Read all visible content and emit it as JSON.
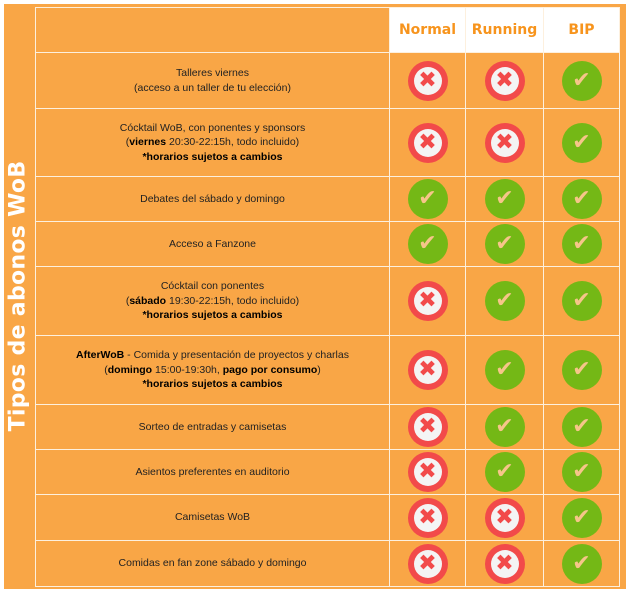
{
  "side_title": "Tipos de abonos WoB",
  "columns": [
    "Normal",
    "Running",
    "BIP"
  ],
  "colors": {
    "background": "#F9A646",
    "header_text": "#F7941D",
    "yes": "#74B816",
    "no": "#F24A4A"
  },
  "icons": {
    "yes": "check-circle-icon",
    "no": "x-circle-icon"
  },
  "rows": [
    {
      "lines": [
        [
          {
            "t": "Talleres viernes",
            "b": false
          }
        ],
        [
          {
            "t": "(acceso a un taller de tu elección)",
            "b": false
          }
        ]
      ],
      "values": [
        "no",
        "no",
        "yes"
      ]
    },
    {
      "lines": [
        [
          {
            "t": "Cócktail WoB, con ponentes y sponsors",
            "b": false
          }
        ],
        [
          {
            "t": "(",
            "b": false
          },
          {
            "t": "viernes",
            "b": true
          },
          {
            "t": " 20:30-22:15h, todo incluido)",
            "b": false
          }
        ],
        [
          {
            "t": "*horarios sujetos a cambios",
            "b": true
          }
        ]
      ],
      "values": [
        "no",
        "no",
        "yes"
      ]
    },
    {
      "lines": [
        [
          {
            "t": "Debates del sábado y domingo",
            "b": false
          }
        ]
      ],
      "values": [
        "yes",
        "yes",
        "yes"
      ]
    },
    {
      "lines": [
        [
          {
            "t": "Acceso a Fanzone",
            "b": false
          }
        ]
      ],
      "values": [
        "yes",
        "yes",
        "yes"
      ]
    },
    {
      "lines": [
        [
          {
            "t": "Cócktail con ponentes",
            "b": false
          }
        ],
        [
          {
            "t": "(",
            "b": false
          },
          {
            "t": "sábado",
            "b": true
          },
          {
            "t": " 19:30-22:15h, todo incluido)",
            "b": false
          }
        ],
        [
          {
            "t": "*horarios sujetos a cambios",
            "b": true
          }
        ]
      ],
      "values": [
        "no",
        "yes",
        "yes"
      ]
    },
    {
      "lines": [
        [
          {
            "t": "AfterWoB",
            "b": true
          },
          {
            "t": " - Comida y presentación de proyectos y charlas",
            "b": false
          }
        ],
        [
          {
            "t": "(",
            "b": false
          },
          {
            "t": "domingo",
            "b": true
          },
          {
            "t": " 15:00-19:30h, ",
            "b": false
          },
          {
            "t": "pago por consumo",
            "b": true
          },
          {
            "t": ")",
            "b": false
          }
        ],
        [
          {
            "t": "*horarios sujetos a cambios",
            "b": true
          }
        ]
      ],
      "values": [
        "no",
        "yes",
        "yes"
      ]
    },
    {
      "lines": [
        [
          {
            "t": "Sorteo de entradas y camisetas",
            "b": false
          }
        ]
      ],
      "values": [
        "no",
        "yes",
        "yes"
      ]
    },
    {
      "lines": [
        [
          {
            "t": "Asientos preferentes en auditorio",
            "b": false
          }
        ]
      ],
      "values": [
        "no",
        "yes",
        "yes"
      ]
    },
    {
      "lines": [
        [
          {
            "t": "Camisetas WoB",
            "b": false
          }
        ]
      ],
      "values": [
        "no",
        "no",
        "yes"
      ]
    },
    {
      "lines": [
        [
          {
            "t": "Comidas en fan zone sábado y domingo",
            "b": false
          }
        ]
      ],
      "values": [
        "no",
        "no",
        "yes"
      ]
    }
  ]
}
